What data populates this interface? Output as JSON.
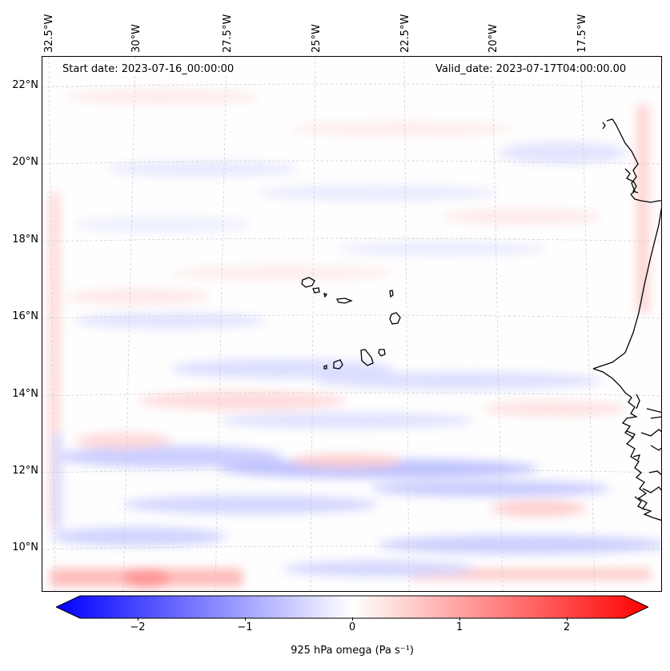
{
  "start_date": "Start date: 2023-07-16_00:00:00",
  "valid_date": "Valid_date: 2023-07-17T04:00:00.00",
  "colorbar": {
    "label": "925 hPa omega (Pa s⁻¹)",
    "ticks": [
      "−2",
      "−1",
      "0",
      "1",
      "2"
    ],
    "tick_values": [
      -2,
      -1,
      0,
      1,
      2
    ],
    "range": [
      -2.5,
      2.5
    ],
    "colors": {
      "min": "#0000ff",
      "mid": "#ffffff",
      "max": "#ff0000"
    }
  },
  "map": {
    "lon_labels": [
      "32.5°W",
      "30°W",
      "27.5°W",
      "25°W",
      "22.5°W",
      "20°W",
      "17.5°W"
    ],
    "lat_labels": [
      "22°N",
      "20°N",
      "18°N",
      "16°N",
      "14°N",
      "12°N",
      "10°N"
    ],
    "gridlines": true,
    "features": [
      "cape-verde-islands",
      "west-africa-coastline"
    ]
  }
}
